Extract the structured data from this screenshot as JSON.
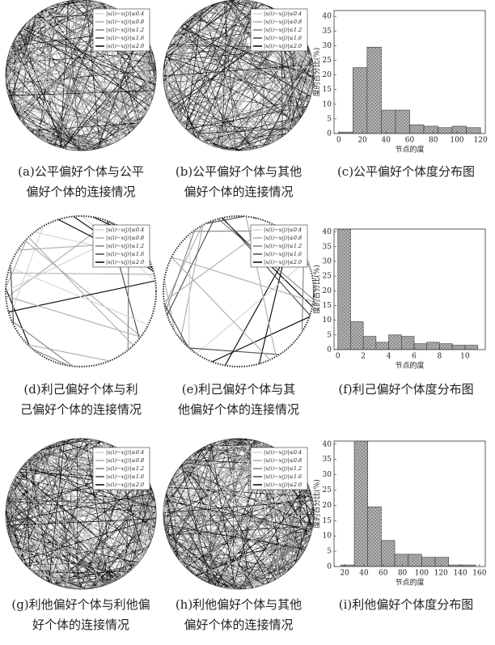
{
  "networks": [
    {
      "caption": [
        "(a)公平偏好个体与公平",
        "偏好个体的连接情况"
      ],
      "legend": [
        {
          "label": "|x(i)−x(j)|≤0.4",
          "color": "#d4d4d4"
        },
        {
          "label": "|x(i)−x(j)|≤0.8",
          "color": "#ababab"
        },
        {
          "label": "|x(i)−x(j)|≤1.2",
          "color": "#808080"
        },
        {
          "label": "|x(i)−x(j)|≤1.6",
          "color": "#444444"
        },
        {
          "label": "|x(i)−x(j)|≤2.0",
          "color": "#000000"
        }
      ]
    },
    {
      "caption": [
        "(b)公平偏好个体与其他",
        "偏好个体的连接情况"
      ],
      "legend": [
        {
          "label": "|x(i)−x(j)|≤0.4",
          "color": "#d4d4d4"
        },
        {
          "label": "|x(i)−x(j)|≤0.8",
          "color": "#ababab"
        },
        {
          "label": "|x(i)−x(j)|≤1.2",
          "color": "#808080"
        },
        {
          "label": "|x(i)−x(j)|≤1.6",
          "color": "#444444"
        },
        {
          "label": "|x(i)−x(j)|≤2.0",
          "color": "#000000"
        }
      ]
    },
    {
      "caption": [
        "(d)利己偏好个体与利",
        "己偏好个体的连接情况"
      ],
      "legend": [
        {
          "label": "|x(i)−x(j)|≤0.4",
          "color": "#d4d4d4"
        },
        {
          "label": "|x(i)−x(j)|≤0.8",
          "color": "#ababab"
        },
        {
          "label": "|x(i)−x(j)|≤1.2",
          "color": "#808080"
        },
        {
          "label": "|x(i)−x(j)|≤1.6",
          "color": "#444444"
        },
        {
          "label": "|x(i)−x(j)|≤2.0",
          "color": "#000000"
        }
      ]
    },
    {
      "caption": [
        "(e)利己偏好个体与其",
        "他偏好个体的连接情况"
      ],
      "legend": [
        {
          "label": "|x(i)−x(j)|≤0.4",
          "color": "#d4d4d4"
        },
        {
          "label": "|x(i)−x(j)|≤0.8",
          "color": "#ababab"
        },
        {
          "label": "|x(i)−x(j)|≤1.2",
          "color": "#808080"
        },
        {
          "label": "|x(i)−x(j)|≤1.6",
          "color": "#444444"
        },
        {
          "label": "|x(i)−x(j)|≤2.0",
          "color": "#000000"
        }
      ]
    },
    {
      "caption": [
        "(g)利他偏好个体与利他偏",
        "好个体的连接情况"
      ],
      "legend": [
        {
          "label": "|x(i)−x(j)|≤0.4",
          "color": "#d4d4d4"
        },
        {
          "label": "|x(i)−x(j)|≤0.8",
          "color": "#ababab"
        },
        {
          "label": "|x(i)−x(j)|≤1.2",
          "color": "#808080"
        },
        {
          "label": "|x(i)−x(j)|≤1.6",
          "color": "#444444"
        },
        {
          "label": "|x(i)−x(j)|≤2.0",
          "color": "#000000"
        }
      ]
    },
    {
      "caption": [
        "(h)利他偏好个体与其他",
        "偏好个体的连接情况"
      ],
      "legend": [
        {
          "label": "|x(i)−x(j)|≤0.4",
          "color": "#d4d4d4"
        },
        {
          "label": "|x(i)−x(j)|≤0.8",
          "color": "#ababab"
        },
        {
          "label": "|x(i)−x(j)|≤1.2",
          "color": "#808080"
        },
        {
          "label": "|x(i)−x(j)|≤1.6",
          "color": "#444444"
        },
        {
          "label": "|x(i)−x(j)|≤2.0",
          "color": "#000000"
        }
      ]
    }
  ],
  "chart_data": [
    {
      "type": "histogram",
      "caption": [
        "(c)公平偏好个体度分布图"
      ],
      "xlabel": "节点的度",
      "ylabel": "度的百分比(%)",
      "bins": [
        0,
        12,
        24,
        36,
        48,
        60,
        72,
        84,
        96,
        108,
        120
      ],
      "values": [
        0.5,
        22.5,
        29.5,
        8,
        8,
        3,
        2.5,
        2,
        2.5,
        2
      ],
      "color": "#b4b4b4",
      "xlim": [
        -4,
        124
      ],
      "ylim": [
        0,
        42
      ],
      "xticks": [
        0,
        20,
        40,
        60,
        80,
        100,
        120
      ],
      "yticks": [
        0,
        5,
        10,
        15,
        20,
        25,
        30,
        35,
        40
      ]
    },
    {
      "type": "histogram",
      "caption": [
        "(f)利己偏好个体度分布图"
      ],
      "xlabel": "节点的度",
      "ylabel": "度的百分比(%)",
      "bins": [
        0,
        1,
        2,
        3,
        4,
        5,
        6,
        7,
        8,
        9,
        10,
        11
      ],
      "values": [
        42,
        9.5,
        4.5,
        2.5,
        5,
        4.5,
        2,
        2.5,
        2,
        1.5,
        1.5
      ],
      "color": "#b4b4b4",
      "xlim": [
        -0.3,
        11.6
      ],
      "ylim": [
        0,
        41
      ],
      "xticks": [
        0,
        2,
        4,
        6,
        8,
        10
      ],
      "yticks": [
        0,
        5,
        10,
        15,
        20,
        25,
        30,
        35,
        40
      ]
    },
    {
      "type": "histogram",
      "caption": [
        "(i)利他偏好个体度分布图"
      ],
      "xlabel": "节点的度",
      "ylabel": "度的百分比(%)",
      "bins": [
        16,
        30,
        44,
        58,
        72,
        86,
        100,
        114,
        128,
        142,
        156
      ],
      "values": [
        0.5,
        42,
        19.5,
        8.5,
        4,
        4,
        3,
        3,
        0.5,
        0.5
      ],
      "color": "#b4b4b4",
      "xlim": [
        9,
        166
      ],
      "ylim": [
        0,
        41
      ],
      "xticks": [
        20,
        40,
        60,
        80,
        100,
        120,
        140,
        160
      ],
      "yticks": [
        0,
        5,
        10,
        15,
        20,
        25,
        30,
        35,
        40
      ]
    }
  ]
}
